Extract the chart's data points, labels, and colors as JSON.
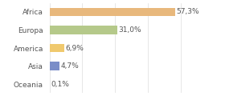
{
  "categories": [
    "Africa",
    "Europa",
    "America",
    "Asia",
    "Oceania"
  ],
  "values": [
    57.3,
    31.0,
    6.9,
    4.7,
    0.1
  ],
  "labels": [
    "57,3%",
    "31,0%",
    "6,9%",
    "4,7%",
    "0,1%"
  ],
  "bar_colors": [
    "#e8b87c",
    "#b5c98a",
    "#f0c96e",
    "#7b8ec8",
    "#cccccc"
  ],
  "background_color": "#ffffff",
  "label_fontsize": 6.5,
  "tick_fontsize": 6.5,
  "bar_height": 0.45,
  "xlim": [
    0,
    75
  ],
  "grid_lines": [
    0,
    15,
    30,
    45,
    60,
    75
  ],
  "grid_color": "#dddddd",
  "text_color": "#555555"
}
